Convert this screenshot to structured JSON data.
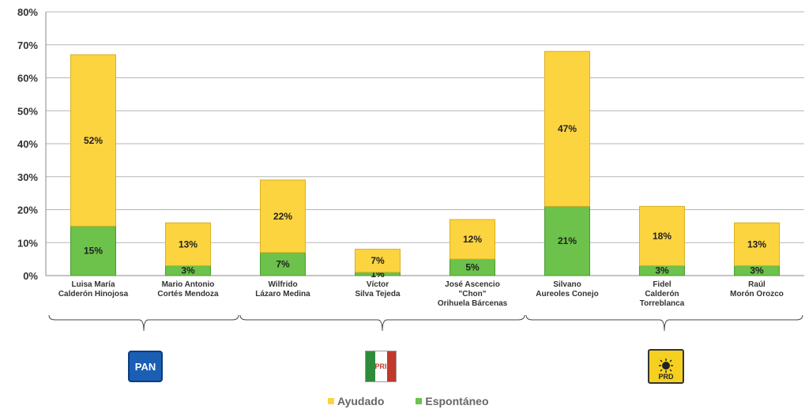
{
  "chart_data": {
    "type": "bar",
    "stacked": true,
    "categories": [
      [
        "Luisa María",
        "Calderón Hinojosa"
      ],
      [
        "Mario Antonio",
        "Cortés Mendoza"
      ],
      [
        "Wilfrido",
        "Lázaro Medina"
      ],
      [
        "Víctor",
        "Silva Tejeda"
      ],
      [
        "José Ascencio",
        "\"Chon\"",
        "Orihuela Bárcenas"
      ],
      [
        "Silvano",
        "Aureoles Conejo"
      ],
      [
        "Fidel",
        "Calderón",
        "Torreblanca"
      ],
      [
        "Raúl",
        "Morón Orozco"
      ]
    ],
    "series": [
      {
        "name": "Espontáneo",
        "color": "#6cc24a",
        "values": [
          15,
          3,
          7,
          1,
          5,
          21,
          3,
          3
        ],
        "labels": [
          "15%",
          "3%",
          "7%",
          "1%",
          "5%",
          "21%",
          "3%",
          "3%"
        ]
      },
      {
        "name": "Ayudado",
        "color": "#fcd440",
        "values": [
          52,
          13,
          22,
          7,
          12,
          47,
          18,
          13
        ],
        "labels": [
          "52%",
          "13%",
          "22%",
          "7%",
          "12%",
          "47%",
          "18%",
          "13%"
        ]
      }
    ],
    "yticks": [
      "0%",
      "10%",
      "20%",
      "30%",
      "40%",
      "50%",
      "60%",
      "70%",
      "80%"
    ],
    "ylim": [
      0,
      80
    ],
    "grid": true,
    "legend": "bottom",
    "parties": [
      {
        "label": "PAN",
        "icon": "pan-logo-icon",
        "color": "#1a5fb4"
      },
      {
        "label": "PRI",
        "icon": "pri-logo-icon",
        "color": "#c0392b"
      },
      {
        "label": "PRD",
        "icon": "prd-logo-icon",
        "color": "#f5d020"
      }
    ]
  }
}
